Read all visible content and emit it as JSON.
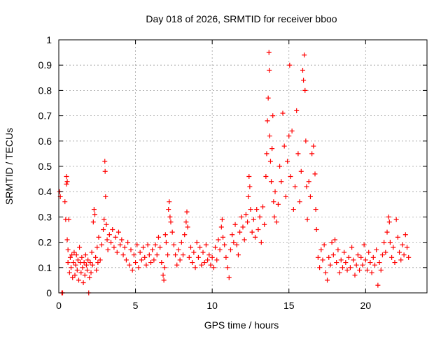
{
  "chart_data": {
    "type": "scatter",
    "title": "Day 018 of 2026, SRMTID for receiver bboo",
    "xlabel": "GPS time / hours",
    "ylabel": "SRMTID / TECUs",
    "xlim": [
      0,
      24
    ],
    "ylim": [
      0,
      1
    ],
    "xticks": [
      0,
      5,
      10,
      15,
      20
    ],
    "xtick_labels": [
      "0",
      "5",
      "10",
      "15",
      "20"
    ],
    "yticks": [
      0,
      0.1,
      0.2,
      0.3,
      0.4,
      0.5,
      0.6,
      0.7,
      0.8,
      0.9,
      1
    ],
    "ytick_labels": [
      "0",
      "0.1",
      "0.2",
      "0.3",
      "0.4",
      "0.5",
      "0.6",
      "0.7",
      "0.8",
      "0.9",
      "1"
    ],
    "grid": true,
    "marker": "plus",
    "series": [
      {
        "name": "SRMTID",
        "color": "#ff0000",
        "points": [
          [
            0.05,
            0.4
          ],
          [
            0.1,
            0.38
          ],
          [
            0.2,
            0.0
          ],
          [
            0.25,
            0.0
          ],
          [
            0.4,
            0.36
          ],
          [
            0.45,
            0.29
          ],
          [
            0.5,
            0.46
          ],
          [
            0.5,
            0.43
          ],
          [
            0.55,
            0.44
          ],
          [
            0.55,
            0.21
          ],
          [
            0.6,
            0.17
          ],
          [
            0.6,
            0.12
          ],
          [
            0.65,
            0.29
          ],
          [
            0.7,
            0.08
          ],
          [
            0.75,
            0.14
          ],
          [
            0.8,
            0.1
          ],
          [
            0.85,
            0.15
          ],
          [
            0.9,
            0.06
          ],
          [
            0.95,
            0.12
          ],
          [
            1.0,
            0.16
          ],
          [
            1.05,
            0.07
          ],
          [
            1.1,
            0.11
          ],
          [
            1.15,
            0.15
          ],
          [
            1.2,
            0.09
          ],
          [
            1.25,
            0.13
          ],
          [
            1.3,
            0.05
          ],
          [
            1.35,
            0.18
          ],
          [
            1.4,
            0.12
          ],
          [
            1.45,
            0.08
          ],
          [
            1.5,
            0.14
          ],
          [
            1.55,
            0.1
          ],
          [
            1.6,
            0.04
          ],
          [
            1.65,
            0.12
          ],
          [
            1.7,
            0.07
          ],
          [
            1.75,
            0.15
          ],
          [
            1.8,
            0.11
          ],
          [
            1.85,
            0.09
          ],
          [
            1.9,
            0.13
          ],
          [
            1.95,
            0.0
          ],
          [
            2.0,
            0.06
          ],
          [
            2.05,
            0.12
          ],
          [
            2.1,
            0.08
          ],
          [
            2.15,
            0.16
          ],
          [
            2.2,
            0.11
          ],
          [
            2.25,
            0.28
          ],
          [
            2.3,
            0.33
          ],
          [
            2.35,
            0.31
          ],
          [
            2.4,
            0.14
          ],
          [
            2.45,
            0.09
          ],
          [
            2.5,
            0.18
          ],
          [
            2.55,
            0.12
          ],
          [
            2.6,
            0.22
          ],
          [
            2.7,
            0.13
          ],
          [
            2.8,
            0.19
          ],
          [
            2.9,
            0.25
          ],
          [
            2.95,
            0.29
          ],
          [
            3.0,
            0.52
          ],
          [
            3.02,
            0.48
          ],
          [
            3.05,
            0.38
          ],
          [
            3.1,
            0.27
          ],
          [
            3.15,
            0.21
          ],
          [
            3.2,
            0.17
          ],
          [
            3.3,
            0.23
          ],
          [
            3.4,
            0.2
          ],
          [
            3.5,
            0.25
          ],
          [
            3.6,
            0.18
          ],
          [
            3.7,
            0.22
          ],
          [
            3.8,
            0.16
          ],
          [
            3.9,
            0.24
          ],
          [
            4.0,
            0.19
          ],
          [
            4.1,
            0.21
          ],
          [
            4.2,
            0.15
          ],
          [
            4.3,
            0.18
          ],
          [
            4.4,
            0.13
          ],
          [
            4.5,
            0.2
          ],
          [
            4.6,
            0.11
          ],
          [
            4.7,
            0.17
          ],
          [
            4.8,
            0.09
          ],
          [
            4.9,
            0.15
          ],
          [
            5.0,
            0.12
          ],
          [
            5.1,
            0.19
          ],
          [
            5.2,
            0.1
          ],
          [
            5.3,
            0.16
          ],
          [
            5.4,
            0.13
          ],
          [
            5.5,
            0.18
          ],
          [
            5.6,
            0.14
          ],
          [
            5.7,
            0.11
          ],
          [
            5.8,
            0.19
          ],
          [
            5.9,
            0.15
          ],
          [
            6.0,
            0.12
          ],
          [
            6.1,
            0.17
          ],
          [
            6.2,
            0.13
          ],
          [
            6.3,
            0.19
          ],
          [
            6.4,
            0.15
          ],
          [
            6.5,
            0.22
          ],
          [
            6.6,
            0.18
          ],
          [
            6.7,
            0.12
          ],
          [
            6.8,
            0.07
          ],
          [
            6.85,
            0.05
          ],
          [
            6.9,
            0.1
          ],
          [
            6.95,
            0.23
          ],
          [
            7.0,
            0.2
          ],
          [
            7.1,
            0.15
          ],
          [
            7.15,
            0.33
          ],
          [
            7.2,
            0.36
          ],
          [
            7.25,
            0.3
          ],
          [
            7.3,
            0.28
          ],
          [
            7.4,
            0.24
          ],
          [
            7.5,
            0.19
          ],
          [
            7.6,
            0.15
          ],
          [
            7.7,
            0.11
          ],
          [
            7.8,
            0.17
          ],
          [
            7.9,
            0.13
          ],
          [
            8.0,
            0.2
          ],
          [
            8.1,
            0.15
          ],
          [
            8.2,
            0.23
          ],
          [
            8.3,
            0.28
          ],
          [
            8.35,
            0.32
          ],
          [
            8.4,
            0.26
          ],
          [
            8.5,
            0.14
          ],
          [
            8.6,
            0.18
          ],
          [
            8.7,
            0.12
          ],
          [
            8.8,
            0.16
          ],
          [
            8.9,
            0.1
          ],
          [
            9.0,
            0.2
          ],
          [
            9.1,
            0.14
          ],
          [
            9.2,
            0.18
          ],
          [
            9.3,
            0.11
          ],
          [
            9.4,
            0.16
          ],
          [
            9.5,
            0.12
          ],
          [
            9.6,
            0.19
          ],
          [
            9.7,
            0.13
          ],
          [
            9.8,
            0.15
          ],
          [
            9.9,
            0.11
          ],
          [
            10.0,
            0.14
          ],
          [
            10.1,
            0.1
          ],
          [
            10.2,
            0.18
          ],
          [
            10.3,
            0.13
          ],
          [
            10.4,
            0.21
          ],
          [
            10.5,
            0.17
          ],
          [
            10.6,
            0.26
          ],
          [
            10.65,
            0.29
          ],
          [
            10.7,
            0.22
          ],
          [
            10.8,
            0.19
          ],
          [
            10.9,
            0.14
          ],
          [
            11.0,
            0.1
          ],
          [
            11.1,
            0.06
          ],
          [
            11.2,
            0.17
          ],
          [
            11.3,
            0.23
          ],
          [
            11.4,
            0.2
          ],
          [
            11.5,
            0.27
          ],
          [
            11.6,
            0.19
          ],
          [
            11.7,
            0.15
          ],
          [
            11.8,
            0.24
          ],
          [
            11.9,
            0.3
          ],
          [
            12.0,
            0.26
          ],
          [
            12.1,
            0.21
          ],
          [
            12.2,
            0.31
          ],
          [
            12.3,
            0.28
          ],
          [
            12.35,
            0.38
          ],
          [
            12.4,
            0.46
          ],
          [
            12.45,
            0.42
          ],
          [
            12.5,
            0.33
          ],
          [
            12.6,
            0.24
          ],
          [
            12.7,
            0.29
          ],
          [
            12.8,
            0.22
          ],
          [
            12.9,
            0.33
          ],
          [
            13.0,
            0.25
          ],
          [
            13.1,
            0.3
          ],
          [
            13.2,
            0.2
          ],
          [
            13.3,
            0.34
          ],
          [
            13.4,
            0.27
          ],
          [
            13.5,
            0.46
          ],
          [
            13.55,
            0.55
          ],
          [
            13.6,
            0.68
          ],
          [
            13.65,
            0.77
          ],
          [
            13.7,
            0.95
          ],
          [
            13.72,
            0.88
          ],
          [
            13.75,
            0.62
          ],
          [
            13.8,
            0.52
          ],
          [
            13.85,
            0.44
          ],
          [
            13.9,
            0.57
          ],
          [
            13.95,
            0.7
          ],
          [
            14.0,
            0.36
          ],
          [
            14.05,
            0.3
          ],
          [
            14.1,
            0.4
          ],
          [
            14.2,
            0.28
          ],
          [
            14.3,
            0.35
          ],
          [
            14.4,
            0.5
          ],
          [
            14.5,
            0.44
          ],
          [
            14.6,
            0.71
          ],
          [
            14.7,
            0.58
          ],
          [
            14.8,
            0.38
          ],
          [
            14.9,
            0.52
          ],
          [
            15.0,
            0.62
          ],
          [
            15.05,
            0.9
          ],
          [
            15.1,
            0.46
          ],
          [
            15.2,
            0.64
          ],
          [
            15.3,
            0.33
          ],
          [
            15.4,
            0.42
          ],
          [
            15.5,
            0.72
          ],
          [
            15.6,
            0.55
          ],
          [
            15.7,
            0.36
          ],
          [
            15.8,
            0.48
          ],
          [
            15.9,
            0.88
          ],
          [
            15.95,
            0.84
          ],
          [
            16.0,
            0.94
          ],
          [
            16.05,
            0.8
          ],
          [
            16.1,
            0.6
          ],
          [
            16.15,
            0.42
          ],
          [
            16.2,
            0.29
          ],
          [
            16.3,
            0.44
          ],
          [
            16.4,
            0.38
          ],
          [
            16.5,
            0.55
          ],
          [
            16.6,
            0.58
          ],
          [
            16.7,
            0.47
          ],
          [
            16.75,
            0.33
          ],
          [
            16.8,
            0.25
          ],
          [
            16.9,
            0.14
          ],
          [
            17.0,
            0.1
          ],
          [
            17.1,
            0.17
          ],
          [
            17.2,
            0.13
          ],
          [
            17.3,
            0.19
          ],
          [
            17.4,
            0.08
          ],
          [
            17.5,
            0.05
          ],
          [
            17.6,
            0.14
          ],
          [
            17.7,
            0.11
          ],
          [
            17.8,
            0.2
          ],
          [
            17.9,
            0.15
          ],
          [
            18.0,
            0.21
          ],
          [
            18.1,
            0.12
          ],
          [
            18.2,
            0.17
          ],
          [
            18.3,
            0.08
          ],
          [
            18.4,
            0.13
          ],
          [
            18.5,
            0.1
          ],
          [
            18.6,
            0.16
          ],
          [
            18.7,
            0.12
          ],
          [
            18.8,
            0.09
          ],
          [
            18.9,
            0.14
          ],
          [
            19.0,
            0.1
          ],
          [
            19.1,
            0.18
          ],
          [
            19.2,
            0.13
          ],
          [
            19.3,
            0.07
          ],
          [
            19.4,
            0.11
          ],
          [
            19.5,
            0.15
          ],
          [
            19.6,
            0.09
          ],
          [
            19.7,
            0.14
          ],
          [
            19.8,
            0.11
          ],
          [
            19.9,
            0.19
          ],
          [
            20.0,
            0.13
          ],
          [
            20.1,
            0.09
          ],
          [
            20.2,
            0.16
          ],
          [
            20.3,
            0.12
          ],
          [
            20.4,
            0.08
          ],
          [
            20.5,
            0.14
          ],
          [
            20.6,
            0.11
          ],
          [
            20.7,
            0.17
          ],
          [
            20.8,
            0.03
          ],
          [
            20.9,
            0.12
          ],
          [
            21.0,
            0.09
          ],
          [
            21.1,
            0.15
          ],
          [
            21.2,
            0.2
          ],
          [
            21.3,
            0.16
          ],
          [
            21.4,
            0.24
          ],
          [
            21.5,
            0.3
          ],
          [
            21.55,
            0.28
          ],
          [
            21.6,
            0.2
          ],
          [
            21.7,
            0.14
          ],
          [
            21.8,
            0.18
          ],
          [
            21.9,
            0.12
          ],
          [
            22.0,
            0.29
          ],
          [
            22.1,
            0.22
          ],
          [
            22.2,
            0.16
          ],
          [
            22.3,
            0.13
          ],
          [
            22.4,
            0.19
          ],
          [
            22.5,
            0.15
          ],
          [
            22.6,
            0.23
          ],
          [
            22.7,
            0.18
          ],
          [
            22.8,
            0.14
          ]
        ]
      }
    ]
  }
}
